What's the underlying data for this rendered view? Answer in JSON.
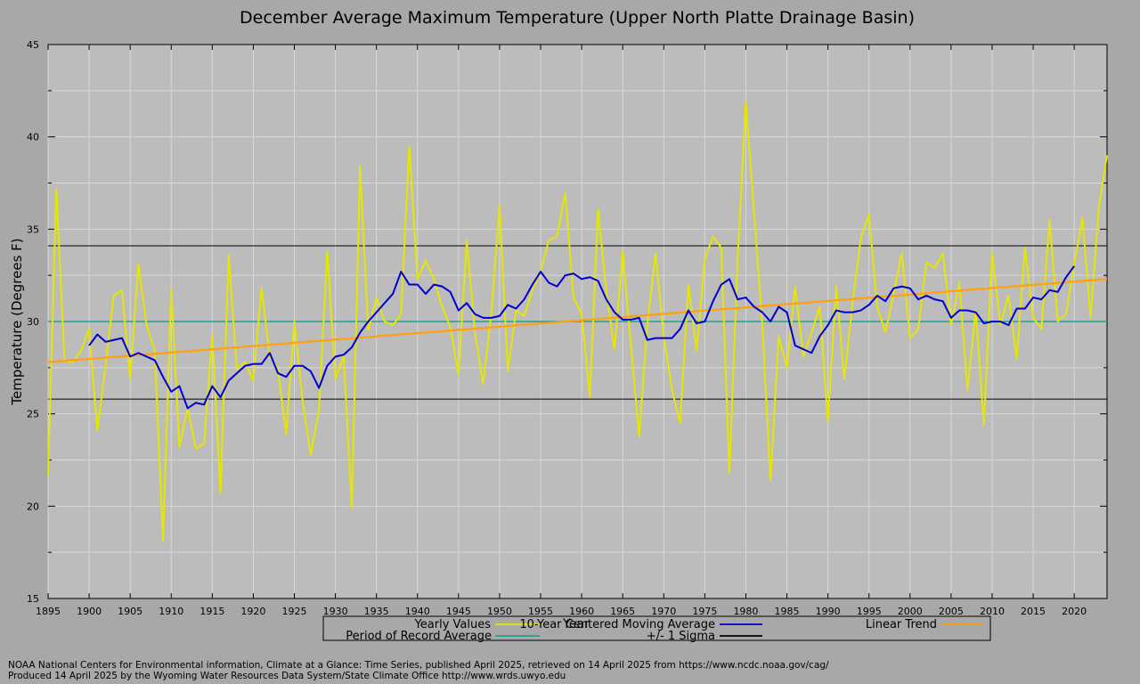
{
  "chart_data": {
    "type": "line",
    "title": "December Average Maximum Temperature (Upper North Platte Drainage Basin)",
    "xlabel": "Year",
    "ylabel": "Temperature (Degrees F)",
    "xlim": [
      1895,
      2024
    ],
    "ylim": [
      15,
      45
    ],
    "x_ticks": [
      1895,
      1900,
      1905,
      1910,
      1915,
      1920,
      1925,
      1930,
      1935,
      1940,
      1945,
      1950,
      1955,
      1960,
      1965,
      1970,
      1975,
      1980,
      1985,
      1990,
      1995,
      2000,
      2005,
      2010,
      2015,
      2020
    ],
    "y_ticks": [
      15,
      20,
      25,
      30,
      35,
      40,
      45
    ],
    "grid": true,
    "legend": {
      "placement": "bottom"
    },
    "years": [
      1895,
      1896,
      1897,
      1898,
      1899,
      1900,
      1901,
      1902,
      1903,
      1904,
      1905,
      1906,
      1907,
      1908,
      1909,
      1910,
      1911,
      1912,
      1913,
      1914,
      1915,
      1916,
      1917,
      1918,
      1919,
      1920,
      1921,
      1922,
      1923,
      1924,
      1925,
      1926,
      1927,
      1928,
      1929,
      1930,
      1931,
      1932,
      1933,
      1934,
      1935,
      1936,
      1937,
      1938,
      1939,
      1940,
      1941,
      1942,
      1943,
      1944,
      1945,
      1946,
      1947,
      1948,
      1949,
      1950,
      1951,
      1952,
      1953,
      1954,
      1955,
      1956,
      1957,
      1958,
      1959,
      1960,
      1961,
      1962,
      1963,
      1964,
      1965,
      1966,
      1967,
      1968,
      1969,
      1970,
      1971,
      1972,
      1973,
      1974,
      1975,
      1976,
      1977,
      1978,
      1979,
      1980,
      1981,
      1982,
      1983,
      1984,
      1985,
      1986,
      1987,
      1988,
      1989,
      1990,
      1991,
      1992,
      1993,
      1994,
      1995,
      1996,
      1997,
      1998,
      1999,
      2000,
      2001,
      2002,
      2003,
      2004,
      2005,
      2006,
      2007,
      2008,
      2009,
      2010,
      2011,
      2012,
      2013,
      2014,
      2015,
      2016,
      2017,
      2018,
      2019,
      2020,
      2021,
      2022,
      2023,
      2024
    ],
    "series": [
      {
        "name": "Yearly Values",
        "color": "#e6e600",
        "values": [
          21.7,
          37.2,
          27.9,
          27.8,
          28.4,
          29.6,
          24.1,
          27.6,
          31.4,
          31.7,
          26.9,
          33.1,
          29.8,
          28.4,
          18.1,
          31.8,
          23.2,
          25.3,
          23.1,
          23.4,
          29.3,
          20.7,
          33.6,
          27.4,
          27.8,
          26.8,
          31.8,
          28.1,
          27.4,
          23.9,
          30.0,
          25.7,
          22.8,
          25.2,
          33.8,
          26.9,
          28.1,
          19.9,
          38.4,
          29.5,
          31.3,
          30.0,
          29.8,
          30.4,
          39.5,
          32.3,
          33.3,
          32.3,
          30.8,
          29.7,
          27.1,
          34.4,
          29.4,
          26.6,
          30.5,
          36.3,
          27.3,
          30.6,
          30.3,
          31.7,
          32.7,
          34.4,
          34.6,
          37.0,
          31.3,
          30.4,
          25.9,
          36.1,
          31.6,
          28.5,
          33.8,
          28.7,
          23.8,
          29.8,
          33.7,
          29.2,
          26.3,
          24.5,
          32.0,
          28.4,
          33.4,
          34.6,
          34.0,
          21.8,
          33.4,
          41.9,
          35.9,
          29.9,
          21.4,
          29.2,
          27.5,
          31.9,
          28.1,
          29.4,
          30.8,
          24.6,
          31.9,
          26.9,
          31.0,
          34.5,
          35.8,
          30.8,
          29.4,
          31.5,
          33.7,
          29.1,
          29.6,
          33.2,
          32.9,
          33.7,
          29.8,
          32.1,
          26.3,
          30.6,
          24.4,
          33.7,
          29.8,
          31.4,
          28.0,
          34.0,
          30.2,
          29.6,
          35.5,
          30.0,
          30.4,
          33.1,
          35.6,
          30.2,
          36.2,
          39.0
        ]
      },
      {
        "name": "10-Year Centered Moving Average",
        "color": "#0000d0",
        "start_year": 1900,
        "values": [
          28.7,
          29.3,
          28.9,
          29.0,
          29.1,
          28.1,
          28.3,
          28.1,
          27.9,
          27.0,
          26.2,
          26.5,
          25.3,
          25.6,
          25.5,
          26.5,
          25.9,
          26.8,
          27.2,
          27.6,
          27.7,
          27.7,
          28.3,
          27.2,
          27.0,
          27.6,
          27.6,
          27.3,
          26.4,
          27.6,
          28.1,
          28.2,
          28.6,
          29.4,
          30.0,
          30.5,
          31.0,
          31.5,
          32.7,
          32.0,
          32.0,
          31.5,
          32.0,
          31.9,
          31.6,
          30.6,
          31.0,
          30.4,
          30.2,
          30.2,
          30.3,
          30.9,
          30.7,
          31.2,
          32.0,
          32.7,
          32.1,
          31.9,
          32.5,
          32.6,
          32.3,
          32.4,
          32.2,
          31.2,
          30.5,
          30.1,
          30.1,
          30.2,
          29.0,
          29.1,
          29.1,
          29.1,
          29.6,
          30.6,
          29.9,
          30.0,
          31.1,
          32.0,
          32.3,
          31.2,
          31.3,
          30.8,
          30.5,
          30.0,
          30.8,
          30.5,
          28.7,
          28.5,
          28.3,
          29.2,
          29.8,
          30.6,
          30.5,
          30.5,
          30.6,
          30.9,
          31.4,
          31.1,
          31.8,
          31.9,
          31.8,
          31.2,
          31.4,
          31.2,
          31.1,
          30.2,
          30.6,
          30.6,
          30.5,
          29.9,
          30.0,
          30.0,
          29.8,
          30.7,
          30.7,
          31.3,
          31.2,
          31.7,
          31.6,
          32.4,
          33.0
        ]
      },
      {
        "name": "Linear Trend",
        "color": "#ffa010",
        "start_value": 27.8,
        "end_value": 32.3
      },
      {
        "name": "Period of Record Average",
        "color": "#20a090",
        "value": 30.0
      },
      {
        "name": "+/- 1 Sigma",
        "color": "#000000",
        "upper": 34.1,
        "lower": 25.8
      }
    ]
  },
  "footer": {
    "line1": "NOAA National Centers for Environmental information, Climate at a Glance: Time Series, published April 2025, retrieved on 14 April 2025 from https://www.ncdc.noaa.gov/cag/",
    "line2": "Produced 14 April 2025 by the Wyoming Water Resources Data System/State Climate Office http://www.wrds.uwyo.edu"
  }
}
